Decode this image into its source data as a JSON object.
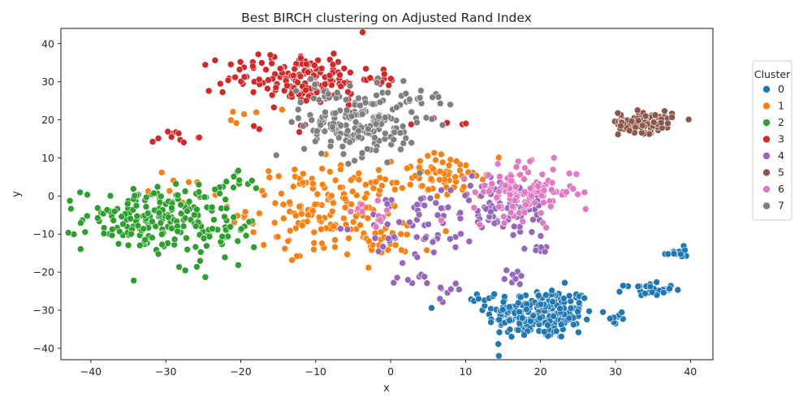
{
  "chart_data": {
    "type": "scatter",
    "title": "Best BIRCH clustering on Adjusted Rand Index",
    "xlabel": "x",
    "ylabel": "y",
    "xlim": [
      -44,
      43
    ],
    "ylim": [
      -43,
      44
    ],
    "xticks": [
      -40,
      -30,
      -20,
      -10,
      0,
      10,
      20,
      30,
      40
    ],
    "yticks": [
      -40,
      -30,
      -20,
      -10,
      0,
      10,
      20,
      30,
      40
    ],
    "grid": false,
    "legend": {
      "title": "Cluster",
      "placement": "right"
    },
    "series": [
      {
        "name": "0",
        "color": "#1f77b4",
        "clusters": [
          {
            "cx": 20,
            "cy": -31,
            "sx": 3.6,
            "sy": 3.4,
            "n": 230
          },
          {
            "cx": 34.5,
            "cy": -24.5,
            "sx": 1.6,
            "sy": 0.8,
            "n": 28
          },
          {
            "cx": 38,
            "cy": -15,
            "sx": 0.8,
            "sy": 0.8,
            "n": 14
          },
          {
            "cx": 30.5,
            "cy": -32,
            "sx": 0.6,
            "sy": 1.5,
            "n": 8
          },
          {
            "cx": 13,
            "cy": -26.5,
            "sx": 0.7,
            "sy": 1.5,
            "n": 8
          }
        ]
      },
      {
        "name": "1",
        "color": "#ff7f0e",
        "clusters": [
          {
            "cx": -8,
            "cy": -3,
            "sx": 5.5,
            "sy": 5.5,
            "n": 170
          },
          {
            "cx": 7,
            "cy": 5,
            "sx": 3.0,
            "sy": 3.0,
            "n": 55
          },
          {
            "cx": -2,
            "cy": -12,
            "sx": 4.0,
            "sy": 2.0,
            "n": 25
          },
          {
            "cx": -19,
            "cy": 20,
            "sx": 1.5,
            "sy": 2.0,
            "n": 6
          },
          {
            "cx": -29,
            "cy": 2,
            "sx": 3.0,
            "sy": 2.0,
            "n": 8
          },
          {
            "cx": 13,
            "cy": 4,
            "sx": 2.0,
            "sy": 3.0,
            "n": 8
          }
        ]
      },
      {
        "name": "2",
        "color": "#2ca02c",
        "clusters": [
          {
            "cx": -32,
            "cy": -6,
            "sx": 4.5,
            "sy": 4.2,
            "n": 175
          },
          {
            "cx": -23,
            "cy": -9,
            "sx": 2.5,
            "sy": 5.0,
            "n": 45
          },
          {
            "cx": -22,
            "cy": 3,
            "sx": 1.8,
            "sy": 1.5,
            "n": 14
          }
        ]
      },
      {
        "name": "3",
        "color": "#d62728",
        "clusters": [
          {
            "cx": -12,
            "cy": 31,
            "sx": 5.0,
            "sy": 3.5,
            "n": 160
          },
          {
            "cx": -29,
            "cy": 15.5,
            "sx": 1.5,
            "sy": 0.8,
            "n": 12
          },
          {
            "cx": -1,
            "cy": 30,
            "sx": 1.2,
            "sy": 0.8,
            "n": 6
          },
          {
            "cx": 8,
            "cy": 19,
            "sx": 2.0,
            "sy": 1.0,
            "n": 5
          },
          {
            "cx": -12,
            "cy": 18,
            "sx": 2.0,
            "sy": 1.5,
            "n": 5
          }
        ]
      },
      {
        "name": "4",
        "color": "#9467bd",
        "clusters": [
          {
            "cx": 15,
            "cy": -3,
            "sx": 3.5,
            "sy": 4.0,
            "n": 80
          },
          {
            "cx": 4,
            "cy": -8,
            "sx": 4.0,
            "sy": 4.5,
            "n": 55
          },
          {
            "cx": 3,
            "cy": -22,
            "sx": 1.5,
            "sy": 0.8,
            "n": 8
          },
          {
            "cx": 7.5,
            "cy": -25,
            "sx": 1.0,
            "sy": 1.5,
            "n": 8
          },
          {
            "cx": 20,
            "cy": -14,
            "sx": 1.5,
            "sy": 0.5,
            "n": 8
          },
          {
            "cx": 16,
            "cy": -20,
            "sx": 1.5,
            "sy": 2.0,
            "n": 8
          }
        ]
      },
      {
        "name": "5",
        "color": "#8c564b",
        "clusters": [
          {
            "cx": 34,
            "cy": 19.5,
            "sx": 1.8,
            "sy": 1.4,
            "n": 110
          }
        ]
      },
      {
        "name": "6",
        "color": "#e377c2",
        "clusters": [
          {
            "cx": 18,
            "cy": 1,
            "sx": 3.5,
            "sy": 3.5,
            "n": 120
          },
          {
            "cx": -2,
            "cy": -5,
            "sx": 1.5,
            "sy": 1.5,
            "n": 10
          }
        ]
      },
      {
        "name": "7",
        "color": "#7f7f7f",
        "clusters": [
          {
            "cx": -4,
            "cy": 19,
            "sx": 3.8,
            "sy": 4.5,
            "n": 190
          },
          {
            "cx": 5,
            "cy": 26,
            "sx": 2.0,
            "sy": 1.2,
            "n": 12
          },
          {
            "cx": -10,
            "cy": 28,
            "sx": 2.0,
            "sy": 2.0,
            "n": 10
          }
        ]
      }
    ]
  }
}
